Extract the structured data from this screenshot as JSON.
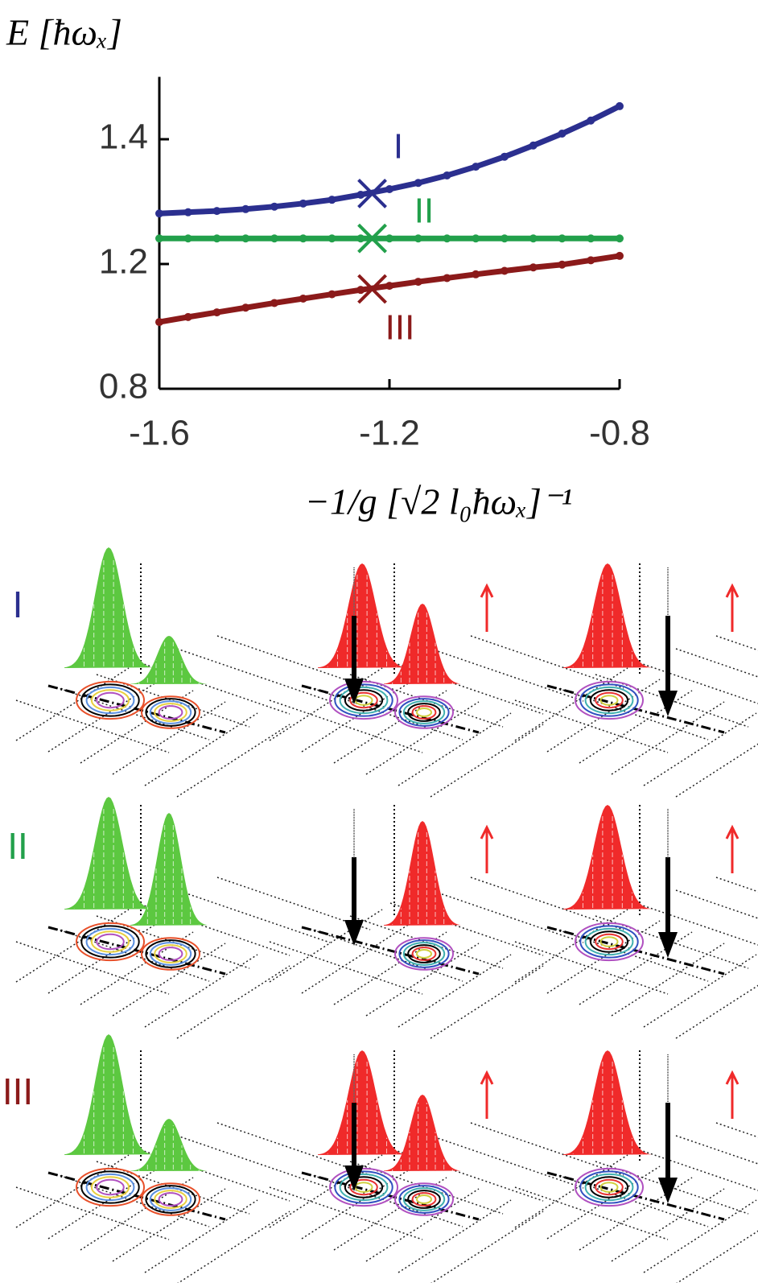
{
  "chart_data": {
    "type": "line",
    "y_label": "E [ħωₓ]",
    "x_label": "−1/g [√2 l₀ħωₓ]⁻¹",
    "x": [
      -1.6,
      -1.55,
      -1.5,
      -1.45,
      -1.4,
      -1.35,
      -1.3,
      -1.25,
      -1.2,
      -1.15,
      -1.1,
      -1.05,
      -1.0,
      -0.95,
      -0.9,
      -0.85,
      -0.8
    ],
    "series": [
      {
        "name": "I",
        "color": "#2b2f8f",
        "values": [
          1.281,
          1.283,
          1.285,
          1.288,
          1.292,
          1.297,
          1.303,
          1.311,
          1.32,
          1.33,
          1.342,
          1.356,
          1.372,
          1.39,
          1.409,
          1.43,
          1.453
        ],
        "marker": [
          -1.23,
          1.313
        ]
      },
      {
        "name": "II",
        "color": "#22a04b",
        "values": [
          1.241,
          1.241,
          1.241,
          1.241,
          1.241,
          1.241,
          1.241,
          1.241,
          1.241,
          1.241,
          1.241,
          1.241,
          1.241,
          1.241,
          1.241,
          1.241,
          1.241
        ],
        "marker": [
          -1.23,
          1.241
        ]
      },
      {
        "name": "III",
        "color": "#8b1a1a",
        "values": [
          1.014,
          1.03,
          1.045,
          1.06,
          1.075,
          1.089,
          1.103,
          1.117,
          1.13,
          1.143,
          1.155,
          1.167,
          1.178,
          1.189,
          1.198,
          1.206,
          1.213
        ],
        "marker": [
          -1.23,
          1.12
        ]
      }
    ],
    "xlim": [
      -1.6,
      -0.8
    ],
    "xticks": [
      -1.6,
      -1.2,
      -0.8
    ],
    "ylim": [
      0.8,
      1.5
    ],
    "yticks": [
      0.8,
      1.2,
      1.4
    ]
  },
  "panel_labels": [
    {
      "text": "I",
      "color": "#2b2f8f"
    },
    {
      "text": "II",
      "color": "#22a04b"
    },
    {
      "text": "III",
      "color": "#8b1a1a"
    }
  ]
}
